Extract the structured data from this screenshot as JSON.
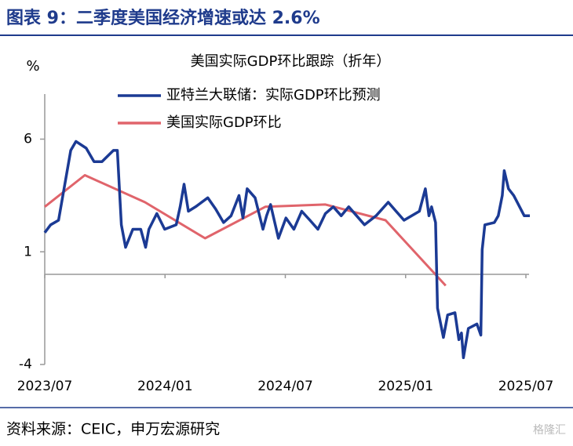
{
  "header": {
    "title": "图表 9：二季度美国经济增速或达 2.6%"
  },
  "chart_data": {
    "type": "line",
    "title": "美国实际GDP环比跟踪（折年）",
    "ylabel": "%",
    "xlim": [
      "2023/07",
      "2025/07"
    ],
    "xticks": [
      "2023/07",
      "2024/01",
      "2024/07",
      "2025/01",
      "2025/07"
    ],
    "ylim": [
      -4,
      8
    ],
    "yticks": [
      6,
      1,
      -4
    ],
    "zero_line": true,
    "series": [
      {
        "name": "亚特兰大联储：实际GDP环比预测",
        "color": "#1b3a94",
        "x": [
          "2023/07/01",
          "2023/07/10",
          "2023/07/22",
          "2023/08/10",
          "2023/08/18",
          "2023/09/03",
          "2023/09/15",
          "2023/09/27",
          "2023/10/14",
          "2023/10/20",
          "2023/10/26",
          "2023/11/02",
          "2023/11/13",
          "2023/11/25",
          "2023/12/02",
          "2023/12/07",
          "2023/12/19",
          "2023/12/31",
          "2024/01/18",
          "2024/01/24",
          "2024/01/30",
          "2024/02/06",
          "2024/02/17",
          "2024/03/05",
          "2024/03/17",
          "2024/03/29",
          "2024/04/10",
          "2024/04/22",
          "2024/04/28",
          "2024/05/04",
          "2024/05/16",
          "2024/05/28",
          "2024/06/03",
          "2024/06/09",
          "2024/06/21",
          "2024/07/02",
          "2024/07/14",
          "2024/07/26",
          "2024/08/08",
          "2024/08/20",
          "2024/09/01",
          "2024/09/13",
          "2024/09/25",
          "2024/10/06",
          "2024/10/30",
          "2024/11/17",
          "2024/12/05",
          "2024/12/17",
          "2024/12/29",
          "2025/01/22",
          "2025/01/31",
          "2025/02/06",
          "2025/02/10",
          "2025/02/16",
          "2025/02/19",
          "2025/02/28",
          "2025/03/04",
          "2025/03/15",
          "2025/03/21",
          "2025/03/25",
          "2025/03/28",
          "2025/04/05",
          "2025/04/18",
          "2025/04/24",
          "2025/04/26",
          "2025/04/30",
          "2025/05/14",
          "2025/05/20",
          "2025/05/26",
          "2025/05/29",
          "2025/06/05",
          "2025/06/13",
          "2025/06/29",
          "2025/07/07"
        ],
        "values": [
          1.85,
          2.2,
          2.4,
          5.5,
          5.9,
          5.6,
          5.0,
          5.0,
          5.5,
          5.5,
          2.2,
          1.2,
          2.0,
          2.0,
          1.2,
          2.0,
          2.7,
          2.0,
          2.2,
          3.0,
          4.0,
          2.8,
          3.0,
          3.4,
          2.9,
          2.3,
          2.6,
          3.5,
          2.5,
          3.8,
          3.4,
          2.0,
          2.6,
          3.1,
          1.6,
          2.5,
          2.0,
          2.8,
          2.4,
          2.0,
          2.7,
          3.0,
          2.6,
          3.0,
          2.2,
          2.6,
          3.2,
          2.8,
          2.4,
          2.8,
          3.8,
          2.6,
          3.0,
          2.3,
          -1.5,
          -2.8,
          -1.8,
          -1.7,
          -2.9,
          -2.6,
          -3.7,
          -2.4,
          -2.2,
          -2.7,
          1.1,
          2.2,
          2.3,
          2.6,
          3.5,
          4.6,
          3.8,
          3.5,
          2.6,
          2.6
        ]
      },
      {
        "name": "美国实际GDP环比",
        "color": "#e0646b",
        "x": [
          "2023/07",
          "2023/09",
          "2023/12",
          "2024/03",
          "2024/06",
          "2024/09",
          "2024/12",
          "2025/03"
        ],
        "values": [
          3.0,
          4.4,
          3.2,
          1.6,
          3.0,
          3.1,
          2.4,
          -0.5
        ]
      }
    ]
  },
  "footer": {
    "source": "资料来源：CEIC，申万宏源研究",
    "watermark": "格隆汇"
  }
}
